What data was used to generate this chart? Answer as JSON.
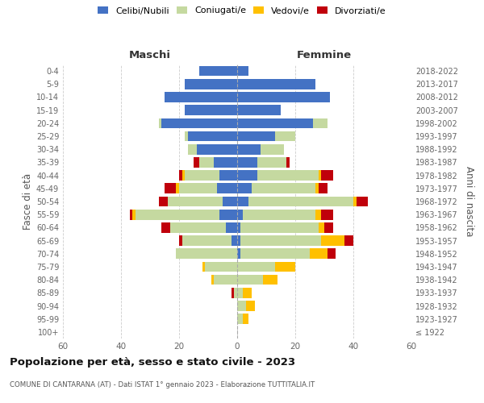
{
  "age_groups": [
    "100+",
    "95-99",
    "90-94",
    "85-89",
    "80-84",
    "75-79",
    "70-74",
    "65-69",
    "60-64",
    "55-59",
    "50-54",
    "45-49",
    "40-44",
    "35-39",
    "30-34",
    "25-29",
    "20-24",
    "15-19",
    "10-14",
    "5-9",
    "0-4"
  ],
  "birth_years": [
    "≤ 1922",
    "1923-1927",
    "1928-1932",
    "1933-1937",
    "1938-1942",
    "1943-1947",
    "1948-1952",
    "1953-1957",
    "1958-1962",
    "1963-1967",
    "1968-1972",
    "1973-1977",
    "1978-1982",
    "1983-1987",
    "1988-1992",
    "1993-1997",
    "1998-2002",
    "2003-2007",
    "2008-2012",
    "2013-2017",
    "2018-2022"
  ],
  "males": {
    "celibi": [
      0,
      0,
      0,
      0,
      0,
      0,
      0,
      2,
      4,
      6,
      5,
      7,
      6,
      8,
      14,
      17,
      26,
      18,
      25,
      18,
      13
    ],
    "coniugati": [
      0,
      0,
      0,
      1,
      8,
      11,
      21,
      17,
      19,
      29,
      19,
      13,
      12,
      5,
      3,
      1,
      1,
      0,
      0,
      0,
      0
    ],
    "vedovi": [
      0,
      0,
      0,
      0,
      1,
      1,
      0,
      0,
      0,
      1,
      0,
      1,
      1,
      0,
      0,
      0,
      0,
      0,
      0,
      0,
      0
    ],
    "divorziati": [
      0,
      0,
      0,
      1,
      0,
      0,
      0,
      1,
      3,
      1,
      3,
      4,
      1,
      2,
      0,
      0,
      0,
      0,
      0,
      0,
      0
    ]
  },
  "females": {
    "nubili": [
      0,
      0,
      0,
      0,
      0,
      0,
      1,
      1,
      1,
      2,
      4,
      5,
      7,
      7,
      8,
      13,
      26,
      15,
      32,
      27,
      4
    ],
    "coniugate": [
      0,
      2,
      3,
      2,
      9,
      13,
      24,
      28,
      27,
      25,
      36,
      22,
      21,
      10,
      8,
      7,
      5,
      0,
      0,
      0,
      0
    ],
    "vedove": [
      0,
      2,
      3,
      3,
      5,
      7,
      6,
      8,
      2,
      2,
      1,
      1,
      1,
      0,
      0,
      0,
      0,
      0,
      0,
      0,
      0
    ],
    "divorziate": [
      0,
      0,
      0,
      0,
      0,
      0,
      3,
      3,
      3,
      4,
      4,
      3,
      4,
      1,
      0,
      0,
      0,
      0,
      0,
      0,
      0
    ]
  },
  "colors": {
    "celibi": "#4472c4",
    "coniugati": "#c5d9a0",
    "vedovi": "#ffc000",
    "divorziati": "#c0000b"
  },
  "title": "Popolazione per età, sesso e stato civile - 2023",
  "subtitle": "COMUNE DI CANTARANA (AT) - Dati ISTAT 1° gennaio 2023 - Elaborazione TUTTITALIA.IT",
  "xlim": 60,
  "xlabel_left": "Maschi",
  "xlabel_right": "Femmine",
  "ylabel_left": "Fasce di età",
  "ylabel_right": "Anni di nascita",
  "legend_labels": [
    "Celibi/Nubili",
    "Coniugati/e",
    "Vedovi/e",
    "Divorziati/e"
  ],
  "bg_color": "#ffffff",
  "grid_color": "#cccccc"
}
